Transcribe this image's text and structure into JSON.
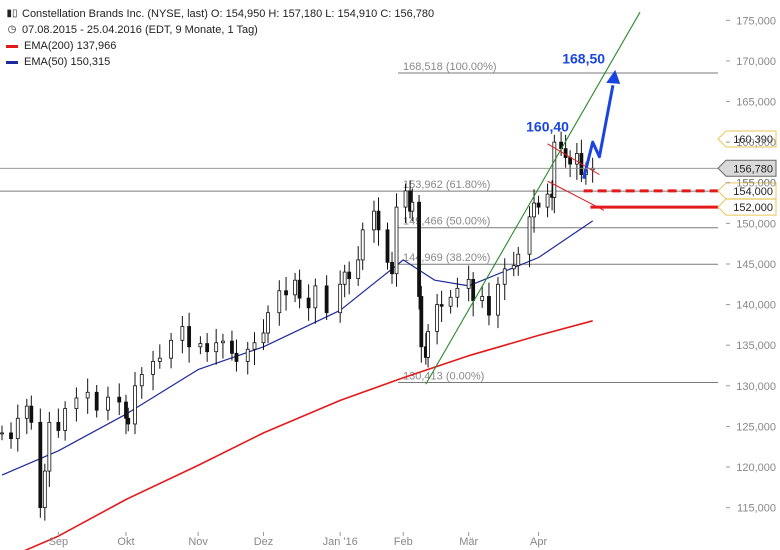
{
  "header": {
    "title_line": "Constellation Brands Inc. (NYSE, last)  O: 154,950  H: 157,180  L: 154,910  C: 156,780",
    "period_line": "07.08.2015 - 25.04.2016 (EDT, 9 Monate, 1 Tag)",
    "ema200_label": "EMA(200)  137,966",
    "ema50_label": "EMA(50)  150,315",
    "chart_icon": "candlestick-icon",
    "clock_icon": "clock-icon"
  },
  "colors": {
    "candle": "#111111",
    "ema200": "#e31a1c",
    "ema50": "#1c2a9c",
    "trendline": "#2a8a2a",
    "arrow": "#1a44e0",
    "support": "#e31a1c",
    "level": "#7a7a7a",
    "grid_text": "#888888"
  },
  "chart_data": {
    "type": "candlestick",
    "title": "Constellation Brands Inc. (NYSE, last)",
    "y_axis": {
      "side": "right",
      "range": [
        112000,
        177500
      ],
      "ticks": [
        115000,
        120000,
        125000,
        130000,
        135000,
        140000,
        145000,
        150000,
        155000,
        160000,
        165000,
        170000,
        175000
      ],
      "tick_labels": [
        "115,000",
        "120,000",
        "125,000",
        "130,000",
        "135,000",
        "140,000",
        "145,000",
        "150,000",
        "155,000",
        "160,000",
        "165,000",
        "170,000",
        "175,000"
      ]
    },
    "x_axis": {
      "labels": [
        "Sep",
        "Okt",
        "Nov",
        "Dez",
        "Jan '16",
        "Feb",
        "Mär",
        "Apr"
      ],
      "label_dates": [
        "2015-09-01",
        "2015-10-01",
        "2015-11-02",
        "2015-12-01",
        "2016-01-04",
        "2016-02-01",
        "2016-03-01",
        "2016-04-01"
      ],
      "range": [
        "2015-08-07",
        "2016-05-16"
      ]
    },
    "close_series": [
      [
        "2015-08-07",
        124.2
      ],
      [
        "2015-08-11",
        123.5
      ],
      [
        "2015-08-14",
        126.0
      ],
      [
        "2015-08-18",
        127.5
      ],
      [
        "2015-08-20",
        125.5
      ],
      [
        "2015-08-24",
        115.0
      ],
      [
        "2015-08-26",
        119.5
      ],
      [
        "2015-08-28",
        125.5
      ],
      [
        "2015-09-01",
        124.5
      ],
      [
        "2015-09-04",
        127.2
      ],
      [
        "2015-09-09",
        128.5
      ],
      [
        "2015-09-14",
        129.2
      ],
      [
        "2015-09-18",
        127.0
      ],
      [
        "2015-09-23",
        128.6
      ],
      [
        "2015-09-28",
        128.0
      ],
      [
        "2015-10-01",
        126.0
      ],
      [
        "2015-10-02",
        125.3
      ],
      [
        "2015-10-05",
        130.0
      ],
      [
        "2015-10-08",
        131.4
      ],
      [
        "2015-10-13",
        133.0
      ],
      [
        "2015-10-16",
        133.4
      ],
      [
        "2015-10-21",
        135.6
      ],
      [
        "2015-10-26",
        137.3
      ],
      [
        "2015-10-29",
        134.8
      ],
      [
        "2015-11-03",
        135.2
      ],
      [
        "2015-11-06",
        134.2
      ],
      [
        "2015-11-10",
        135.3
      ],
      [
        "2015-11-13",
        135.5
      ],
      [
        "2015-11-17",
        134.0
      ],
      [
        "2015-11-19",
        133.0
      ],
      [
        "2015-11-24",
        134.5
      ],
      [
        "2015-11-27",
        135.3
      ],
      [
        "2015-12-01",
        136.5
      ],
      [
        "2015-12-03",
        139.0
      ],
      [
        "2015-12-08",
        141.7
      ],
      [
        "2015-12-11",
        141.2
      ],
      [
        "2015-12-15",
        143.0
      ],
      [
        "2015-12-17",
        140.8
      ],
      [
        "2015-12-21",
        139.6
      ],
      [
        "2015-12-24",
        142.3
      ],
      [
        "2015-12-29",
        139.0
      ],
      [
        "2016-01-04",
        142.5
      ],
      [
        "2016-01-06",
        144.0
      ],
      [
        "2016-01-08",
        143.2
      ],
      [
        "2016-01-12",
        145.5
      ],
      [
        "2016-01-14",
        149.2
      ],
      [
        "2016-01-19",
        151.5
      ],
      [
        "2016-01-21",
        149.2
      ],
      [
        "2016-01-25",
        145.2
      ],
      [
        "2016-01-27",
        143.8
      ],
      [
        "2016-01-29",
        152.0
      ],
      [
        "2016-02-02",
        154.0
      ],
      [
        "2016-02-04",
        151.5
      ],
      [
        "2016-02-05",
        152.6
      ],
      [
        "2016-02-08",
        141.0
      ],
      [
        "2016-02-09",
        134.8
      ],
      [
        "2016-02-11",
        133.5
      ],
      [
        "2016-02-12",
        136.7
      ],
      [
        "2016-02-16",
        140.0
      ],
      [
        "2016-02-18",
        139.8
      ],
      [
        "2016-02-22",
        140.9
      ],
      [
        "2016-02-25",
        142.0
      ],
      [
        "2016-03-01",
        143.1
      ],
      [
        "2016-03-03",
        140.5
      ],
      [
        "2016-03-07",
        141.0
      ],
      [
        "2016-03-10",
        138.7
      ],
      [
        "2016-03-14",
        142.5
      ],
      [
        "2016-03-17",
        144.4
      ],
      [
        "2016-03-21",
        144.8
      ],
      [
        "2016-03-23",
        146.2
      ],
      [
        "2016-03-28",
        150.8
      ],
      [
        "2016-03-30",
        152.5
      ],
      [
        "2016-04-01",
        152.0
      ],
      [
        "2016-04-05",
        153.6
      ],
      [
        "2016-04-07",
        153.2
      ],
      [
        "2016-04-08",
        160.0
      ],
      [
        "2016-04-11",
        159.2
      ],
      [
        "2016-04-13",
        158.1
      ],
      [
        "2016-04-15",
        157.3
      ],
      [
        "2016-04-18",
        158.6
      ],
      [
        "2016-04-20",
        156.0
      ],
      [
        "2016-04-22",
        156.6
      ],
      [
        "2016-04-25",
        156.78
      ]
    ],
    "series": [
      {
        "name": "EMA(200)",
        "values": [
          [
            "2015-08-07",
            108.5
          ],
          [
            "2015-09-01",
            111.5
          ],
          [
            "2015-10-01",
            116.0
          ],
          [
            "2015-11-02",
            120.2
          ],
          [
            "2015-12-01",
            124.2
          ],
          [
            "2016-01-04",
            128.2
          ],
          [
            "2016-02-01",
            131.0
          ],
          [
            "2016-03-01",
            133.7
          ],
          [
            "2016-04-01",
            136.2
          ],
          [
            "2016-04-25",
            138.0
          ]
        ]
      },
      {
        "name": "EMA(50)",
        "values": [
          [
            "2015-08-07",
            119.0
          ],
          [
            "2015-09-01",
            122.0
          ],
          [
            "2015-10-01",
            126.5
          ],
          [
            "2015-11-02",
            132.0
          ],
          [
            "2015-12-01",
            134.8
          ],
          [
            "2016-01-04",
            139.3
          ],
          [
            "2016-02-01",
            145.5
          ],
          [
            "2016-02-15",
            143.0
          ],
          [
            "2016-03-01",
            142.3
          ],
          [
            "2016-04-01",
            145.8
          ],
          [
            "2016-04-25",
            150.3
          ]
        ]
      }
    ],
    "fibonacci": [
      {
        "label": "168,518 (100.00%)",
        "value": 168.518
      },
      {
        "label": "153,962 (61.80%)",
        "value": 153.962
      },
      {
        "label": "149,466 (50.00%)",
        "value": 149.466
      },
      {
        "label": "144,969 (38.20%)",
        "value": 144.969
      },
      {
        "label": "130,413 (0.00%)",
        "value": 130.413
      }
    ],
    "price_tags": [
      {
        "label": "160,390",
        "value": 160.39,
        "style": "outline"
      },
      {
        "label": "156,780",
        "value": 156.78,
        "style": "current"
      },
      {
        "label": "155,000",
        "value": 155.0,
        "style": "hidden"
      },
      {
        "label": "154,000",
        "value": 154.0,
        "style": "outline"
      },
      {
        "label": "152,000",
        "value": 152.0,
        "style": "outline"
      }
    ],
    "annotations": [
      {
        "label": "160,40",
        "date": "2016-04-05",
        "value": 161.3
      },
      {
        "label": "168,50",
        "date": "2016-04-21",
        "value": 169.7
      }
    ],
    "trendline": {
      "from": [
        "2016-02-11",
        130.2
      ],
      "to": [
        "2016-05-16",
        176.0
      ]
    },
    "supports": [
      {
        "value": 154.0,
        "style": "dashed",
        "from": "2016-04-21"
      },
      {
        "value": 152.0,
        "style": "solid",
        "from": "2016-04-24"
      }
    ]
  }
}
